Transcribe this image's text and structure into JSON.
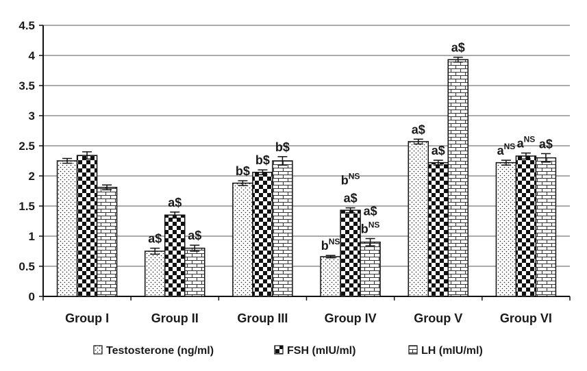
{
  "chart_data": {
    "type": "bar",
    "categories": [
      "Group I",
      "Group II",
      "Group III",
      "Group IV",
      "Group V",
      "Group VI"
    ],
    "series": [
      {
        "name": "Testosterone (ng/ml)",
        "pattern": "dots",
        "values": [
          2.25,
          0.75,
          1.88,
          0.66,
          2.57,
          2.22
        ],
        "errors": [
          0.04,
          0.05,
          0.04,
          0.02,
          0.04,
          0.04
        ],
        "annotations": [
          {
            "base": "",
            "sup": ""
          },
          {
            "base": "a$",
            "sup": ""
          },
          {
            "base": "b$",
            "sup": ""
          },
          {
            "base": "b",
            "sup": "NS"
          },
          {
            "base": "a$",
            "sup": ""
          },
          {
            "base": "a",
            "sup": "NS"
          }
        ]
      },
      {
        "name": "FSH (mIU/ml)",
        "pattern": "checker",
        "values": [
          2.34,
          1.35,
          2.06,
          1.43,
          2.22,
          2.33
        ],
        "errors": [
          0.06,
          0.05,
          0.04,
          0.04,
          0.04,
          0.05
        ],
        "annotations": [
          {
            "base": "",
            "sup": ""
          },
          {
            "base": "a$",
            "sup": ""
          },
          {
            "base": "b$",
            "sup": ""
          },
          {
            "base": "a$",
            "sup": ""
          },
          {
            "base": "a$",
            "sup": ""
          },
          {
            "base": "a",
            "sup": "NS"
          }
        ],
        "annotations_top": [
          {
            "base": "",
            "sup": ""
          },
          {
            "base": "",
            "sup": ""
          },
          {
            "base": "",
            "sup": ""
          },
          {
            "base": "b",
            "sup": "NS"
          },
          {
            "base": "",
            "sup": ""
          },
          {
            "base": "",
            "sup": ""
          }
        ]
      },
      {
        "name": "LH (mIU/ml)",
        "pattern": "brick",
        "values": [
          1.81,
          0.8,
          2.25,
          0.9,
          3.93,
          2.3
        ],
        "errors": [
          0.04,
          0.05,
          0.07,
          0.06,
          0.04,
          0.07
        ],
        "annotations": [
          {
            "base": "",
            "sup": ""
          },
          {
            "base": "a$",
            "sup": ""
          },
          {
            "base": "b$",
            "sup": ""
          },
          {
            "base": "b",
            "sup": "NS"
          },
          {
            "base": "a$",
            "sup": ""
          },
          {
            "base": "a$",
            "sup": ""
          }
        ],
        "annotations_top": [
          {
            "base": "",
            "sup": ""
          },
          {
            "base": "",
            "sup": ""
          },
          {
            "base": "",
            "sup": ""
          },
          {
            "base": "a$",
            "sup": ""
          },
          {
            "base": "",
            "sup": ""
          },
          {
            "base": "",
            "sup": ""
          }
        ]
      }
    ],
    "yticks": [
      "0",
      "0.5",
      "1",
      "1.5",
      "2",
      "2.5",
      "3",
      "3.5",
      "4",
      "4.5"
    ],
    "ylim": [
      0,
      4.5
    ],
    "title": "",
    "xlabel": "",
    "ylabel": "",
    "grid": true,
    "legend_position": "bottom"
  }
}
